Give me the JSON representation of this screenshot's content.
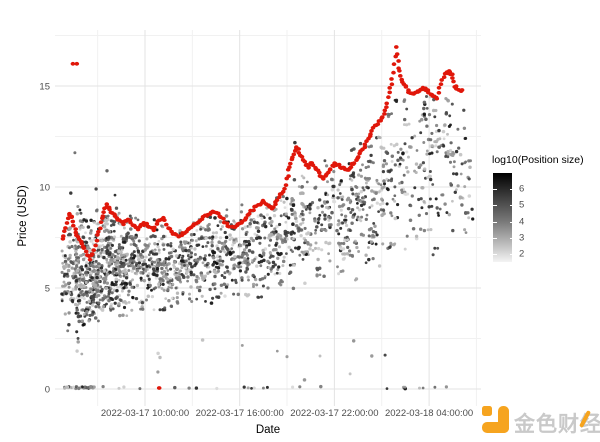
{
  "chart_data": {
    "type": "scatter",
    "title": "",
    "xlabel": "Date",
    "ylabel": "Price (USD)",
    "x_ticks": [
      {
        "t": 10,
        "label": "2022-03-17 10:00:00"
      },
      {
        "t": 16,
        "label": "2022-03-17 16:00:00"
      },
      {
        "t": 22,
        "label": "2022-03-17 22:00:00"
      },
      {
        "t": 28,
        "label": "2022-03-18 04:00:00"
      }
    ],
    "x_minor_t": [
      7,
      13,
      19,
      25,
      31
    ],
    "y_ticks": [
      0,
      5,
      10,
      15
    ],
    "y_minor": [
      2.5,
      7.5,
      12.5,
      17.5
    ],
    "x_range_t": [
      4.3,
      31.4
    ],
    "y_range": [
      -0.85,
      17.8
    ],
    "grid": true,
    "legend": {
      "title": "log10(Position size)",
      "position": "right",
      "tick_values": [
        6,
        5,
        4,
        3,
        2
      ],
      "bar_top_value": 7.0,
      "bar_bottom_value": 1.5,
      "color_high": "#000000",
      "color_low": "#f4f4f4"
    },
    "red_series": {
      "description": "running price path (red dots)",
      "points": [
        [
          4.8,
          7.4
        ],
        [
          4.99,
          8.0
        ],
        [
          5.18,
          8.7
        ],
        [
          5.37,
          8.5
        ],
        [
          5.56,
          7.9
        ],
        [
          5.75,
          7.5
        ],
        [
          6.01,
          7.2
        ],
        [
          6.26,
          6.8
        ],
        [
          6.51,
          6.4
        ],
        [
          6.77,
          6.9
        ],
        [
          7.02,
          7.6
        ],
        [
          7.21,
          8.2
        ],
        [
          7.4,
          8.8
        ],
        [
          7.59,
          9.1
        ],
        [
          7.78,
          8.9
        ],
        [
          8.04,
          8.6
        ],
        [
          8.29,
          8.4
        ],
        [
          8.61,
          8.2
        ],
        [
          8.92,
          8.4
        ],
        [
          9.24,
          8.1
        ],
        [
          9.56,
          7.9
        ],
        [
          9.87,
          8.2
        ],
        [
          10.19,
          8.1
        ],
        [
          10.51,
          7.9
        ],
        [
          10.82,
          8.3
        ],
        [
          11.14,
          8.5
        ],
        [
          11.46,
          8.0
        ],
        [
          11.77,
          7.7
        ],
        [
          12.09,
          7.6
        ],
        [
          12.41,
          7.7
        ],
        [
          12.72,
          7.9
        ],
        [
          13.04,
          8.1
        ],
        [
          13.36,
          8.3
        ],
        [
          13.68,
          8.5
        ],
        [
          13.99,
          8.6
        ],
        [
          14.31,
          8.8
        ],
        [
          14.63,
          8.7
        ],
        [
          14.94,
          8.4
        ],
        [
          15.26,
          8.1
        ],
        [
          15.58,
          8.0
        ],
        [
          15.89,
          8.1
        ],
        [
          16.21,
          8.3
        ],
        [
          16.53,
          8.6
        ],
        [
          16.84,
          8.9
        ],
        [
          17.16,
          9.1
        ],
        [
          17.48,
          9.3
        ],
        [
          17.79,
          9.1
        ],
        [
          18.05,
          8.9
        ],
        [
          18.3,
          9.2
        ],
        [
          18.55,
          9.6
        ],
        [
          18.81,
          9.9
        ],
        [
          19.06,
          10.6
        ],
        [
          19.25,
          11.2
        ],
        [
          19.44,
          11.6
        ],
        [
          19.63,
          12.0
        ],
        [
          19.82,
          11.6
        ],
        [
          20.08,
          11.2
        ],
        [
          20.33,
          11.0
        ],
        [
          20.58,
          11.2
        ],
        [
          20.84,
          10.9
        ],
        [
          21.09,
          10.6
        ],
        [
          21.34,
          10.4
        ],
        [
          21.6,
          10.7
        ],
        [
          21.85,
          11.0
        ],
        [
          22.1,
          11.2
        ],
        [
          22.36,
          11.0
        ],
        [
          22.61,
          10.9
        ],
        [
          22.87,
          10.9
        ],
        [
          23.12,
          11.1
        ],
        [
          23.37,
          11.3
        ],
        [
          23.62,
          11.6
        ],
        [
          23.88,
          12.0
        ],
        [
          24.13,
          12.4
        ],
        [
          24.39,
          12.8
        ],
        [
          24.64,
          13.1
        ],
        [
          24.89,
          13.3
        ],
        [
          25.14,
          13.6
        ],
        [
          25.34,
          14.2
        ],
        [
          25.53,
          14.9
        ],
        [
          25.72,
          15.6
        ],
        [
          25.91,
          16.9
        ],
        [
          26.1,
          15.9
        ],
        [
          26.29,
          15.3
        ],
        [
          26.48,
          15.0
        ],
        [
          26.73,
          14.7
        ],
        [
          26.98,
          14.6
        ],
        [
          27.24,
          14.7
        ],
        [
          27.49,
          14.8
        ],
        [
          27.74,
          14.9
        ],
        [
          28.0,
          14.7
        ],
        [
          28.25,
          14.5
        ],
        [
          28.5,
          14.4
        ],
        [
          28.76,
          15.1
        ],
        [
          29.01,
          15.6
        ],
        [
          29.26,
          15.7
        ],
        [
          29.45,
          15.6
        ],
        [
          29.64,
          15.0
        ],
        [
          29.83,
          14.8
        ],
        [
          30.09,
          14.8
        ]
      ],
      "outliers": [
        [
          5.43,
          16.1
        ],
        [
          5.68,
          16.1
        ],
        [
          10.9,
          0.05
        ]
      ]
    },
    "gray_extra_points": [
      [
        5.56,
        11.7,
        4.5
      ],
      [
        7.59,
        10.8,
        4.8
      ],
      [
        10.82,
        0.84,
        3.5
      ],
      [
        25.21,
        1.68,
        5.5
      ],
      [
        19.5,
        12.2,
        5.8
      ],
      [
        21.4,
        11.3,
        5.2
      ],
      [
        5.3,
        9.7,
        5.8
      ],
      [
        6.9,
        9.9,
        5.5
      ],
      [
        8.1,
        9.6,
        6.0
      ]
    ],
    "cloud_model": {
      "note_free": true,
      "seed": 42,
      "segments": [
        {
          "t0": 4.7,
          "t1": 5.6,
          "n": 60,
          "lo": [
            2.8,
            2.4
          ],
          "hi": [
            8.0,
            9.0
          ]
        },
        {
          "t0": 5.6,
          "t1": 6.6,
          "n": 170,
          "lo": [
            2.2,
            2.5
          ],
          "hi": [
            9.3,
            8.5
          ]
        },
        {
          "t0": 6.6,
          "t1": 8.0,
          "n": 200,
          "lo": [
            2.5,
            3.2
          ],
          "hi": [
            8.8,
            9.3
          ]
        },
        {
          "t0": 8.0,
          "t1": 9.5,
          "n": 150,
          "lo": [
            3.2,
            3.6
          ],
          "hi": [
            9.3,
            8.6
          ]
        },
        {
          "t0": 9.5,
          "t1": 11.5,
          "n": 150,
          "lo": [
            3.5,
            3.8
          ],
          "hi": [
            8.6,
            8.5
          ]
        },
        {
          "t0": 11.5,
          "t1": 13.5,
          "n": 140,
          "lo": [
            3.8,
            4.0
          ],
          "hi": [
            8.0,
            8.7
          ]
        },
        {
          "t0": 13.5,
          "t1": 16.0,
          "n": 150,
          "lo": [
            4.0,
            4.2
          ],
          "hi": [
            9.0,
            9.3
          ]
        },
        {
          "t0": 16.0,
          "t1": 18.5,
          "n": 140,
          "lo": [
            4.2,
            4.4
          ],
          "hi": [
            9.5,
            9.8
          ]
        },
        {
          "t0": 18.5,
          "t1": 21.0,
          "n": 130,
          "lo": [
            4.4,
            4.8
          ],
          "hi": [
            11.5,
            11.2
          ]
        },
        {
          "t0": 21.0,
          "t1": 23.5,
          "n": 120,
          "lo": [
            4.8,
            5.2
          ],
          "hi": [
            11.2,
            12.0
          ]
        },
        {
          "t0": 23.5,
          "t1": 26.0,
          "n": 110,
          "lo": [
            5.3,
            6.0
          ],
          "hi": [
            12.5,
            15.3
          ]
        },
        {
          "t0": 26.0,
          "t1": 28.5,
          "n": 100,
          "lo": [
            6.0,
            6.5
          ],
          "hi": [
            15.2,
            15.3
          ]
        },
        {
          "t0": 28.5,
          "t1": 30.8,
          "n": 70,
          "lo": [
            6.5,
            7.0
          ],
          "hi": [
            15.5,
            14.8
          ]
        }
      ],
      "zero_row": {
        "dense": {
          "t0": 4.8,
          "t1": 6.8,
          "n": 30
        },
        "sparse": {
          "t0": 6.8,
          "t1": 30.3,
          "n": 25
        }
      },
      "low_stragglers": {
        "n": 14,
        "t0": 5.0,
        "t1": 27.0,
        "p0": 0.4,
        "p1": 2.6
      }
    }
  },
  "colors": {
    "red": "#e0170a",
    "grid_major": "#e3e3e3",
    "grid_minor": "#f1f1f1",
    "axis_text": "#4d4d4d",
    "axis_title": "#000000",
    "background": "#ffffff"
  },
  "legend_labels": [
    "6",
    "5",
    "4",
    "3",
    "2"
  ],
  "watermark": {
    "text": "金色财经",
    "brand_color": "#f6a41f",
    "text_color": "#c9c9c9"
  }
}
